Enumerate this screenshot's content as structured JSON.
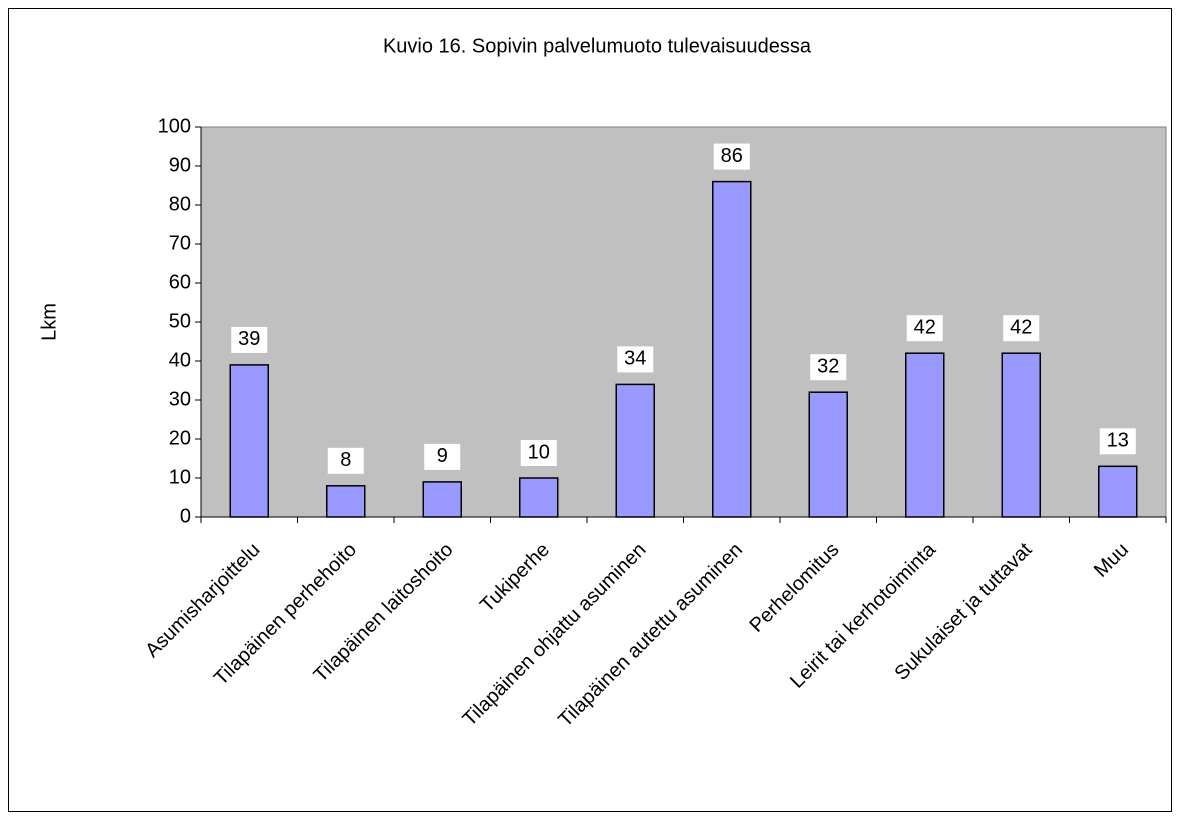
{
  "chart_data": {
    "type": "bar",
    "title": "Kuvio 16. Sopivin palvelumuoto tulevaisuudessa",
    "y_label": "Lkm",
    "categories": [
      "Asumisharjoittelu",
      "Tilapäinen perhehoito",
      "Tilapäinen laitoshoito",
      "Tukiperhe",
      "Tilapäinen ohjattu asuminen",
      "Tilapäinen autettu asuminen",
      "Perhelomitus",
      "Leirit tai kerhotoiminta",
      "Sukulaiset ja tuttavat",
      "Muu"
    ],
    "values": [
      39,
      8,
      9,
      10,
      34,
      86,
      32,
      42,
      42,
      13
    ],
    "color": "#9999ff",
    "plot_background": "#c0c0c0",
    "ylim": [
      0,
      100
    ],
    "yticks": [
      0,
      10,
      20,
      30,
      40,
      50,
      60,
      70,
      80,
      90,
      100
    ],
    "grid": false
  }
}
